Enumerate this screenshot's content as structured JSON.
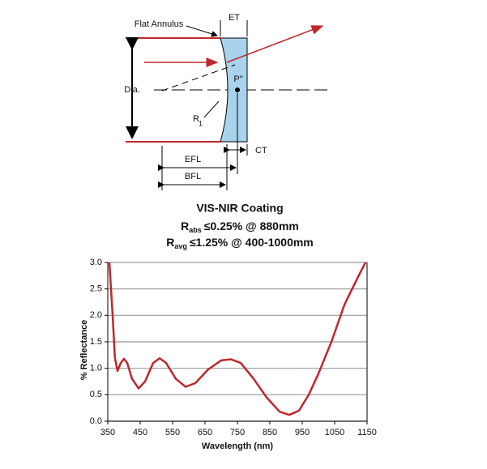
{
  "diagram": {
    "labels": {
      "flat_annulus": "Flat Annulus",
      "et": "ET",
      "dia": "Dia.",
      "p2": "P\"",
      "r1": "R",
      "r1_sub": "1",
      "ct": "CT",
      "efl": "EFL",
      "bfl": "BFL"
    }
  },
  "chart_data": {
    "type": "line",
    "title": "VIS-NIR Coating",
    "subtitle_lines": [
      [
        "R",
        "abs",
        "≤0.25% @ 880mm"
      ],
      [
        "R",
        "avg",
        "≤1.25% @ 400-1000mm"
      ]
    ],
    "x_label": "Wavelength (nm)",
    "y_label": "% Reflectance",
    "xlim": [
      350,
      1150
    ],
    "ylim": [
      0,
      3
    ],
    "xticks": [
      350,
      450,
      550,
      650,
      750,
      850,
      950,
      1050,
      1150
    ],
    "yticks": [
      {
        "value": 0,
        "label": "0.0"
      },
      {
        "value": 0.5,
        "label": "0.5"
      },
      {
        "value": 1,
        "label": "1.0"
      },
      {
        "value": 1.5,
        "label": "1.5"
      },
      {
        "value": 2,
        "label": "2.0"
      },
      {
        "value": 2.5,
        "label": "2.5"
      },
      {
        "value": 3,
        "label": "3.0"
      }
    ],
    "grid": true,
    "series": [
      {
        "name": "Reflectance",
        "color": "#c0272d",
        "x": [
          355,
          365,
          372,
          380,
          390,
          400,
          410,
          425,
          445,
          465,
          490,
          510,
          530,
          560,
          590,
          620,
          660,
          700,
          730,
          760,
          800,
          840,
          880,
          910,
          940,
          970,
          1000,
          1040,
          1080,
          1120,
          1145
        ],
        "values": [
          3.0,
          2.0,
          1.2,
          0.95,
          1.1,
          1.18,
          1.1,
          0.8,
          0.62,
          0.75,
          1.1,
          1.19,
          1.1,
          0.8,
          0.65,
          0.72,
          0.98,
          1.15,
          1.17,
          1.1,
          0.8,
          0.45,
          0.18,
          0.12,
          0.2,
          0.5,
          0.9,
          1.5,
          2.2,
          2.7,
          3.0
        ]
      }
    ]
  }
}
